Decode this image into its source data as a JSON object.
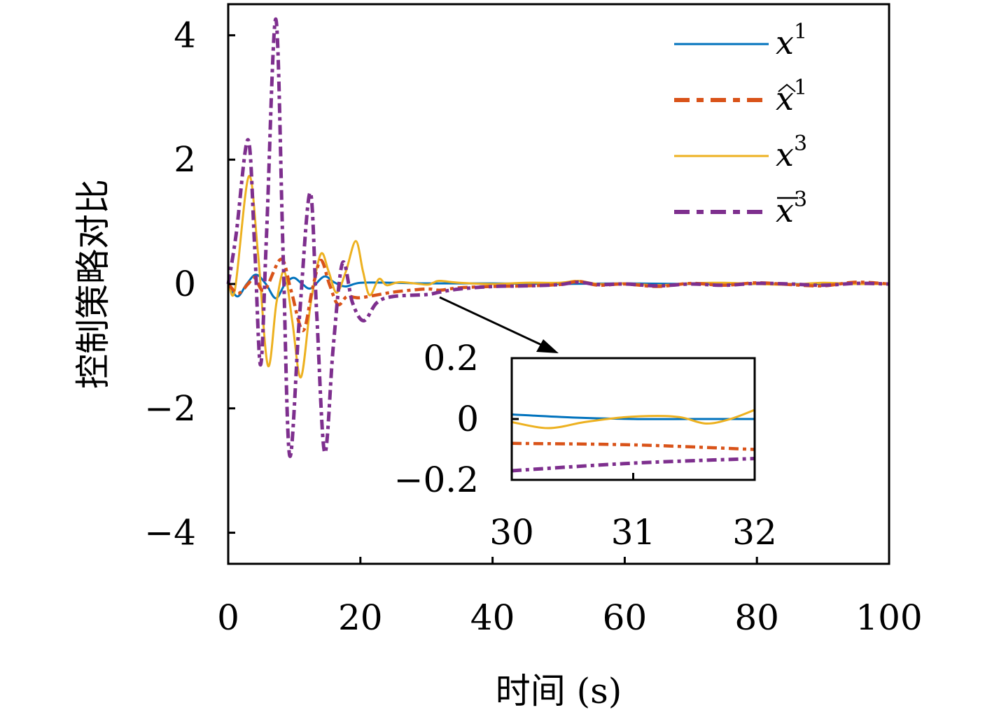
{
  "chart_data": [
    {
      "type": "line",
      "xlabel": "时间 (s)",
      "ylabel": "控制策略对比",
      "xlim": [
        0,
        100
      ],
      "ylim": [
        -4.5,
        4.5
      ],
      "xticks": [
        0,
        20,
        40,
        60,
        80,
        100
      ],
      "yticks": [
        -4,
        -2,
        0,
        2,
        4
      ],
      "xtick_labels": [
        "0",
        "20",
        "40",
        "60",
        "80",
        "100"
      ],
      "ytick_labels": [
        "−4",
        "−2",
        "0",
        "2",
        "4"
      ],
      "grid": false,
      "legend_position": "top-right",
      "series": [
        {
          "name": "x1",
          "legend_base": "x",
          "legend_accent": "",
          "legend_sup": "1",
          "color": "#0072BD",
          "style": "solid",
          "points": [
            [
              0,
              0
            ],
            [
              1.4,
              -0.2
            ],
            [
              2.8,
              0
            ],
            [
              4.2,
              0.15
            ],
            [
              5.7,
              0
            ],
            [
              7.2,
              -0.23
            ],
            [
              8.6,
              0
            ],
            [
              9.9,
              0.1
            ],
            [
              11.2,
              0
            ],
            [
              12.5,
              -0.07
            ],
            [
              14.5,
              0.12
            ],
            [
              16,
              0.03
            ],
            [
              17.7,
              -0.04
            ],
            [
              20,
              0.02
            ],
            [
              25,
              0.02
            ],
            [
              30,
              0.01
            ],
            [
              40,
              0.01
            ],
            [
              50,
              0
            ],
            [
              60,
              0.01
            ],
            [
              70,
              0
            ],
            [
              80,
              0
            ],
            [
              90,
              0
            ],
            [
              100,
              0
            ]
          ]
        },
        {
          "name": "x̂1",
          "legend_base": "x",
          "legend_accent": "hat",
          "legend_sup": "1",
          "color": "#D95319",
          "style": "dashdot",
          "points": [
            [
              0,
              0
            ],
            [
              1.5,
              -0.15
            ],
            [
              3,
              0
            ],
            [
              4,
              0.1
            ],
            [
              5.5,
              -0.1
            ],
            [
              8,
              0.4
            ],
            [
              9.5,
              -0.1
            ],
            [
              11.3,
              -0.75
            ],
            [
              12.7,
              -0.1
            ],
            [
              14,
              0.38
            ],
            [
              15.3,
              0
            ],
            [
              16.6,
              -0.33
            ],
            [
              18,
              -0.2
            ],
            [
              20,
              -0.22
            ],
            [
              25,
              -0.13
            ],
            [
              30,
              -0.08
            ],
            [
              32,
              -0.1
            ],
            [
              35,
              -0.06
            ],
            [
              40,
              -0.04
            ],
            [
              45,
              -0.03
            ],
            [
              50,
              -0.01
            ],
            [
              53,
              0.04
            ],
            [
              56,
              -0.02
            ],
            [
              60,
              0
            ],
            [
              65,
              -0.04
            ],
            [
              70,
              0.01
            ],
            [
              75,
              -0.02
            ],
            [
              80,
              0.02
            ],
            [
              85,
              -0.01
            ],
            [
              90,
              -0.03
            ],
            [
              95,
              0.03
            ],
            [
              100,
              0
            ]
          ]
        },
        {
          "name": "x3",
          "legend_base": "x",
          "legend_accent": "",
          "legend_sup": "3",
          "color": "#EDB120",
          "style": "solid",
          "points": [
            [
              0,
              0.1
            ],
            [
              1,
              -0.1
            ],
            [
              3.1,
              1.73
            ],
            [
              4.5,
              0.5
            ],
            [
              6,
              -1.31
            ],
            [
              7.3,
              -0.3
            ],
            [
              8.5,
              0.2
            ],
            [
              9.7,
              -0.6
            ],
            [
              11,
              -1.5
            ],
            [
              12.5,
              -0.3
            ],
            [
              14,
              0.48
            ],
            [
              15.2,
              0.2
            ],
            [
              16.4,
              -0.14
            ],
            [
              17.8,
              0.2
            ],
            [
              19.3,
              0.69
            ],
            [
              20.4,
              0.2
            ],
            [
              21.4,
              -0.18
            ],
            [
              22.8,
              0.08
            ],
            [
              24,
              -0.02
            ],
            [
              26,
              0.03
            ],
            [
              30,
              -0.01
            ],
            [
              31,
              0.02
            ],
            [
              32,
              0.05
            ],
            [
              35,
              0.02
            ],
            [
              40,
              0
            ],
            [
              45,
              0.02
            ],
            [
              50,
              0.02
            ],
            [
              53,
              0.05
            ],
            [
              56,
              0
            ],
            [
              60,
              0.01
            ],
            [
              65,
              -0.02
            ],
            [
              70,
              0.01
            ],
            [
              75,
              0.02
            ],
            [
              80,
              0
            ],
            [
              85,
              -0.01
            ],
            [
              90,
              0.02
            ],
            [
              95,
              0
            ],
            [
              100,
              0
            ]
          ]
        },
        {
          "name": "x̄3",
          "legend_base": "x",
          "legend_accent": "bar",
          "legend_sup": "3",
          "color": "#7E2F8E",
          "style": "dashdot",
          "points": [
            [
              0,
              0
            ],
            [
              1.2,
              0.8
            ],
            [
              3,
              2.32
            ],
            [
              4,
              0.6
            ],
            [
              4.9,
              -1.3
            ],
            [
              5.8,
              0.8
            ],
            [
              7.2,
              4.26
            ],
            [
              8.3,
              0.5
            ],
            [
              9.3,
              -2.76
            ],
            [
              10.8,
              -0.5
            ],
            [
              12.4,
              1.47
            ],
            [
              13.4,
              -0.5
            ],
            [
              14.6,
              -2.71
            ],
            [
              15.9,
              -1
            ],
            [
              17.3,
              0.34
            ],
            [
              18.8,
              -0.3
            ],
            [
              20.5,
              -0.59
            ],
            [
              22.5,
              -0.3
            ],
            [
              25,
              -0.2
            ],
            [
              30,
              -0.17
            ],
            [
              32,
              -0.13
            ],
            [
              35,
              -0.08
            ],
            [
              40,
              -0.04
            ],
            [
              45,
              -0.03
            ],
            [
              50,
              -0.01
            ],
            [
              53,
              0.03
            ],
            [
              56,
              -0.01
            ],
            [
              60,
              0
            ],
            [
              65,
              -0.03
            ],
            [
              70,
              0
            ],
            [
              75,
              -0.02
            ],
            [
              80,
              0.01
            ],
            [
              85,
              0
            ],
            [
              90,
              -0.02
            ],
            [
              95,
              0.01
            ],
            [
              100,
              0
            ]
          ]
        }
      ]
    },
    {
      "type": "line",
      "role": "inset",
      "xlim": [
        30,
        32
      ],
      "ylim": [
        -0.2,
        0.2
      ],
      "xticks": [
        30,
        31,
        32
      ],
      "yticks": [
        -0.2,
        0,
        0.2
      ],
      "xtick_labels": [
        "30",
        "31",
        "32"
      ],
      "ytick_labels": [
        "−0.2",
        "0",
        "0.2"
      ],
      "series": [
        {
          "name": "x1",
          "color": "#0072BD",
          "style": "solid",
          "points": [
            [
              30,
              0.015
            ],
            [
              30.5,
              0.005
            ],
            [
              31,
              0
            ],
            [
              31.5,
              0
            ],
            [
              32,
              0
            ]
          ]
        },
        {
          "name": "x̂1",
          "color": "#D95319",
          "style": "dashdot",
          "points": [
            [
              30,
              -0.08
            ],
            [
              31,
              -0.085
            ],
            [
              32,
              -0.1
            ]
          ]
        },
        {
          "name": "x3",
          "color": "#EDB120",
          "style": "solid",
          "points": [
            [
              30,
              -0.01
            ],
            [
              30.3,
              -0.03
            ],
            [
              30.6,
              -0.01
            ],
            [
              30.9,
              0.005
            ],
            [
              31.2,
              0.01
            ],
            [
              31.4,
              0.005
            ],
            [
              31.6,
              -0.015
            ],
            [
              31.8,
              0
            ],
            [
              32,
              0.03
            ]
          ]
        },
        {
          "name": "x̄3",
          "color": "#7E2F8E",
          "style": "dashdot",
          "points": [
            [
              30,
              -0.17
            ],
            [
              31,
              -0.145
            ],
            [
              32,
              -0.13
            ]
          ]
        }
      ]
    }
  ]
}
